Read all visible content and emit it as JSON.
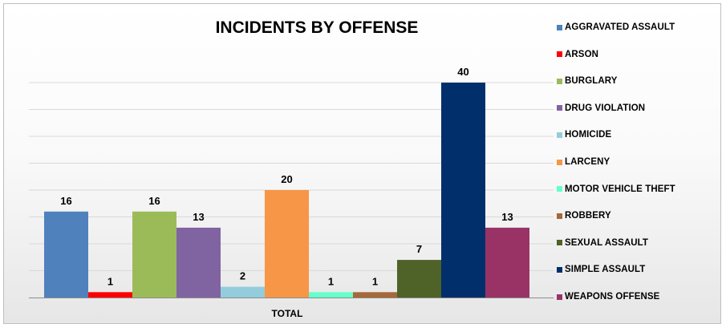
{
  "chart_data": {
    "type": "bar",
    "title": "INCIDENTS BY OFFENSE",
    "categories": [
      "TOTAL"
    ],
    "xlabel": "",
    "ylabel": "",
    "ylim": [
      0,
      40
    ],
    "grid": true,
    "legend_position": "right",
    "series": [
      {
        "name": "AGGRAVATED ASSAULT",
        "values": [
          16
        ],
        "color": "#4f81bd"
      },
      {
        "name": "ARSON",
        "values": [
          1
        ],
        "color": "#ff0000"
      },
      {
        "name": "BURGLARY",
        "values": [
          16
        ],
        "color": "#9bbb59"
      },
      {
        "name": "DRUG VIOLATION",
        "values": [
          13
        ],
        "color": "#8064a2"
      },
      {
        "name": "HOMICIDE",
        "values": [
          2
        ],
        "color": "#93cddd"
      },
      {
        "name": "LARCENY",
        "values": [
          20
        ],
        "color": "#f79646"
      },
      {
        "name": "MOTOR VEHICLE THEFT",
        "values": [
          1
        ],
        "color": "#66ffcc"
      },
      {
        "name": "ROBBERY",
        "values": [
          1
        ],
        "color": "#a5683a"
      },
      {
        "name": "SEXUAL ASSAULT",
        "values": [
          7
        ],
        "color": "#4f6228"
      },
      {
        "name": "SIMPLE ASSAULT",
        "values": [
          40
        ],
        "color": "#002f6c"
      },
      {
        "name": "WEAPONS OFFENSE",
        "values": [
          13
        ],
        "color": "#993366"
      }
    ]
  }
}
